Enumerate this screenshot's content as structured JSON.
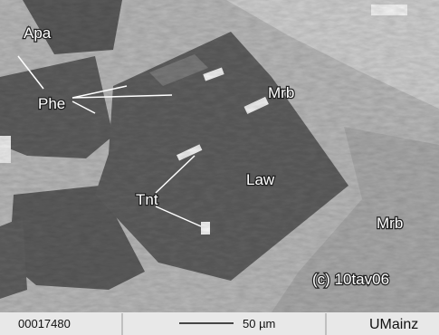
{
  "image": {
    "labels": [
      "Apa",
      "Phe",
      "Mrb",
      "Law",
      "Tnt",
      "Mrb",
      "(c) 10tav06"
    ]
  },
  "footer": {
    "id": "00017480",
    "scale": "50 µm",
    "credit": "UMainz"
  }
}
